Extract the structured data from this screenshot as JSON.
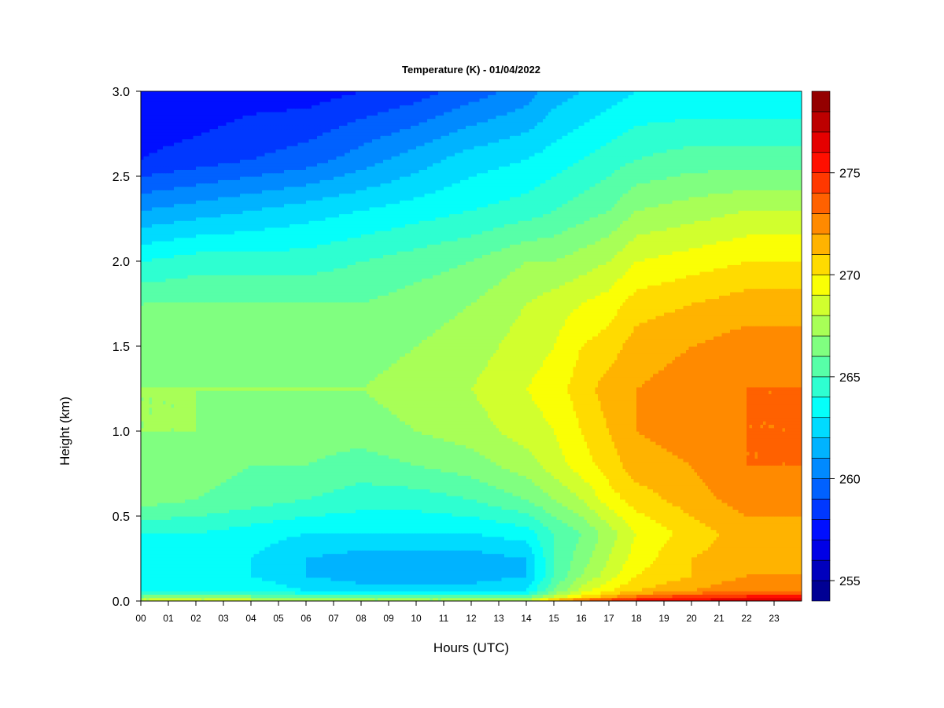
{
  "chart_data": {
    "type": "heatmap",
    "title": "Temperature (K) - 01/04/2022",
    "xlabel": "Hours (UTC)",
    "ylabel": "Height (km)",
    "x_ticks": [
      "00",
      "01",
      "02",
      "03",
      "04",
      "05",
      "06",
      "07",
      "08",
      "09",
      "10",
      "11",
      "12",
      "13",
      "14",
      "15",
      "16",
      "17",
      "18",
      "19",
      "20",
      "21",
      "22",
      "23"
    ],
    "y_ticks": [
      "0.0",
      "0.5",
      "1.0",
      "1.5",
      "2.0",
      "2.5",
      "3.0"
    ],
    "xlim": [
      0,
      24
    ],
    "ylim": [
      0,
      3
    ],
    "colorbar": {
      "ticks": [
        "255",
        "260",
        "265",
        "270",
        "275"
      ],
      "tick_values": [
        255,
        260,
        265,
        270,
        275
      ],
      "range": [
        254,
        279
      ],
      "levels": 25,
      "colormap": "jet"
    },
    "hours": [
      0,
      2,
      4,
      6,
      8,
      10,
      12,
      14,
      15,
      16,
      17,
      18,
      20,
      22,
      23.9
    ],
    "heights_km": [
      0.0,
      0.03,
      0.06,
      0.15,
      0.25,
      0.4,
      0.6,
      0.8,
      1.0,
      1.25,
      1.5,
      1.75,
      2.0,
      2.3,
      2.6,
      3.0
    ],
    "temperature_K": [
      [
        269.0,
        269.0,
        269.0,
        268.5,
        268.0,
        268.0,
        268.0,
        268.5,
        272.0,
        274.0,
        275.0,
        276.0,
        276.5,
        277.0,
        277.0
      ],
      [
        266.0,
        266.0,
        266.0,
        265.5,
        265.0,
        265.0,
        265.0,
        265.5,
        268.0,
        270.0,
        271.5,
        273.0,
        274.5,
        275.0,
        275.0
      ],
      [
        264.0,
        264.0,
        264.0,
        263.0,
        262.5,
        262.5,
        262.5,
        263.0,
        266.0,
        268.5,
        270.0,
        271.0,
        272.0,
        273.0,
        273.0
      ],
      [
        263.5,
        263.5,
        263.0,
        262.0,
        261.5,
        261.5,
        261.5,
        262.0,
        265.0,
        267.0,
        268.5,
        270.0,
        271.0,
        272.0,
        272.0
      ],
      [
        264.0,
        263.5,
        263.0,
        262.0,
        261.5,
        261.5,
        261.5,
        262.0,
        265.0,
        266.5,
        268.0,
        269.5,
        271.0,
        271.5,
        271.5
      ],
      [
        264.0,
        264.0,
        263.5,
        263.0,
        263.0,
        263.0,
        263.0,
        263.5,
        265.0,
        266.0,
        267.5,
        269.0,
        270.5,
        271.5,
        271.5
      ],
      [
        266.5,
        266.0,
        265.5,
        265.0,
        264.5,
        264.5,
        265.0,
        266.0,
        267.0,
        268.0,
        269.5,
        270.5,
        271.5,
        272.5,
        272.5
      ],
      [
        267.0,
        266.5,
        266.0,
        266.0,
        265.5,
        266.0,
        266.5,
        267.5,
        268.5,
        269.5,
        270.5,
        271.5,
        272.0,
        273.0,
        273.0
      ],
      [
        267.0,
        267.0,
        266.5,
        266.5,
        266.5,
        267.0,
        267.5,
        268.5,
        269.0,
        270.0,
        271.0,
        272.0,
        272.5,
        273.0,
        273.0
      ],
      [
        267.0,
        267.0,
        267.0,
        267.0,
        267.0,
        267.5,
        268.0,
        269.0,
        269.5,
        270.5,
        271.5,
        272.0,
        272.5,
        273.0,
        273.0
      ],
      [
        266.5,
        266.5,
        266.5,
        266.5,
        266.5,
        267.0,
        267.5,
        268.5,
        269.0,
        270.0,
        270.5,
        271.5,
        272.0,
        272.5,
        272.5
      ],
      [
        266.0,
        266.0,
        266.0,
        266.0,
        266.0,
        266.5,
        267.0,
        268.0,
        268.5,
        269.0,
        269.5,
        270.5,
        271.0,
        271.5,
        271.5
      ],
      [
        264.0,
        264.5,
        264.5,
        264.5,
        265.0,
        265.5,
        266.0,
        267.0,
        267.0,
        267.5,
        268.0,
        269.0,
        269.5,
        270.0,
        270.0
      ],
      [
        261.0,
        261.5,
        262.0,
        262.5,
        263.0,
        263.5,
        264.0,
        264.5,
        265.0,
        265.5,
        266.0,
        267.0,
        267.5,
        268.0,
        268.0
      ],
      [
        258.0,
        258.5,
        259.0,
        259.5,
        260.5,
        261.5,
        262.5,
        263.0,
        263.5,
        264.0,
        264.5,
        265.0,
        265.5,
        265.5,
        265.5
      ],
      [
        257.0,
        257.0,
        257.5,
        257.5,
        258.0,
        258.5,
        259.5,
        260.5,
        261.5,
        262.0,
        262.5,
        263.0,
        263.0,
        263.0,
        263.0
      ]
    ]
  }
}
